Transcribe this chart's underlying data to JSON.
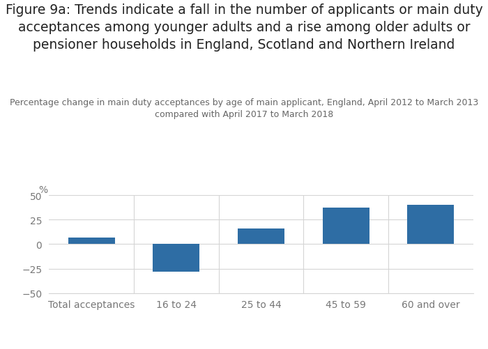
{
  "title": "Figure 9a: Trends indicate a fall in the number of applicants or main duty\nacceptances among younger adults and a rise among older adults or\npensioner households in England, Scotland and Northern Ireland",
  "subtitle": "Percentage change in main duty acceptances by age of main applicant, England, April 2012 to March 2013\ncompared with April 2017 to March 2018",
  "categories": [
    "Total acceptances",
    "16 to 24",
    "25 to 44",
    "45 to 59",
    "60 and over"
  ],
  "values": [
    7,
    -28,
    16,
    37,
    40
  ],
  "bar_color": "#2e6da4",
  "ylim": [
    -50,
    50
  ],
  "yticks": [
    -50,
    -25,
    0,
    25,
    50
  ],
  "ylabel_text": "%",
  "background_color": "#ffffff",
  "grid_color": "#d5d5d5",
  "title_fontsize": 13.5,
  "subtitle_fontsize": 9,
  "tick_fontsize": 10,
  "label_color": "#777777"
}
